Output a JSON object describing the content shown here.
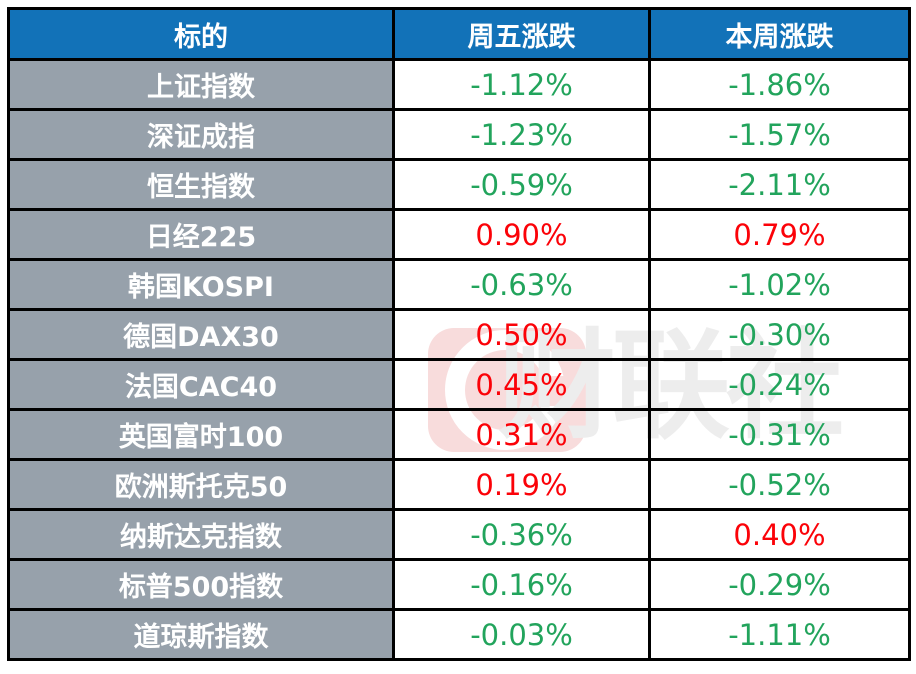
{
  "colors": {
    "header_bg": "#1272B8",
    "header_text": "#FFFFFF",
    "label_bg": "#97A1AB",
    "label_text": "#FFFFFF",
    "up": "#FB0208",
    "down": "#22A45C",
    "border": "#000000",
    "page_bg": "#FFFFFF",
    "watermark_logo_bg": "#F8DCDC",
    "watermark_text": "#EDEDED"
  },
  "watermark": {
    "text": "财联社",
    "logo_icon": "cls-c-logo"
  },
  "chart_data": {
    "type": "table",
    "columns": [
      "标的",
      "周五涨跌",
      "本周涨跌"
    ],
    "rows": [
      {
        "name": "上证指数",
        "friday": "-1.12%",
        "friday_dir": "down",
        "week": "-1.86%",
        "week_dir": "down"
      },
      {
        "name": "深证成指",
        "friday": "-1.23%",
        "friday_dir": "down",
        "week": "-1.57%",
        "week_dir": "down"
      },
      {
        "name": "恒生指数",
        "friday": "-0.59%",
        "friday_dir": "down",
        "week": "-2.11%",
        "week_dir": "down"
      },
      {
        "name": "日经225",
        "friday": "0.90%",
        "friday_dir": "up",
        "week": "0.79%",
        "week_dir": "up"
      },
      {
        "name": "韩国KOSPI",
        "friday": "-0.63%",
        "friday_dir": "down",
        "week": "-1.02%",
        "week_dir": "down"
      },
      {
        "name": "德国DAX30",
        "friday": "0.50%",
        "friday_dir": "up",
        "week": "-0.30%",
        "week_dir": "down"
      },
      {
        "name": "法国CAC40",
        "friday": "0.45%",
        "friday_dir": "up",
        "week": "-0.24%",
        "week_dir": "down"
      },
      {
        "name": "英国富时100",
        "friday": "0.31%",
        "friday_dir": "up",
        "week": "-0.31%",
        "week_dir": "down"
      },
      {
        "name": "欧洲斯托克50",
        "friday": "0.19%",
        "friday_dir": "up",
        "week": "-0.52%",
        "week_dir": "down"
      },
      {
        "name": "纳斯达克指数",
        "friday": "-0.36%",
        "friday_dir": "down",
        "week": "0.40%",
        "week_dir": "up"
      },
      {
        "name": "标普500指数",
        "friday": "-0.16%",
        "friday_dir": "down",
        "week": "-0.29%",
        "week_dir": "down"
      },
      {
        "name": "道琼斯指数",
        "friday": "-0.03%",
        "friday_dir": "down",
        "week": "-1.11%",
        "week_dir": "down"
      }
    ]
  }
}
